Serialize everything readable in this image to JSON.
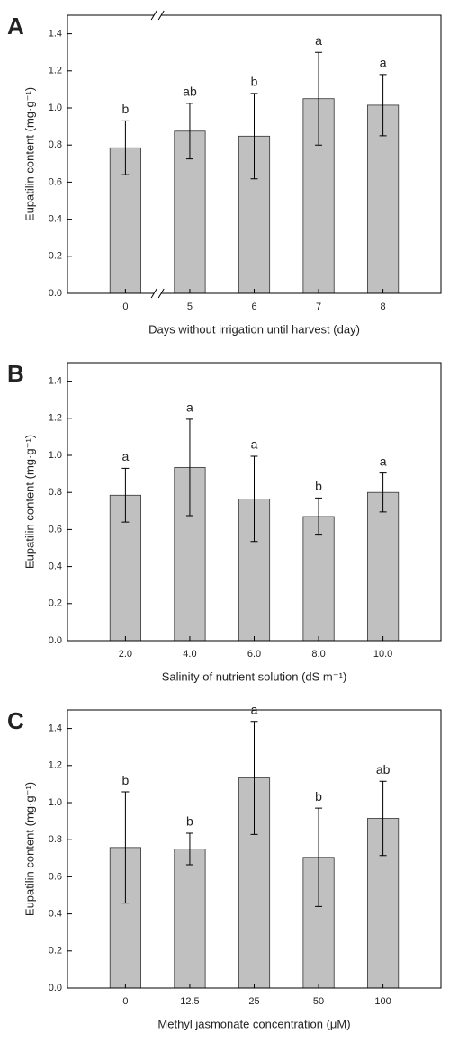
{
  "chart_data": [
    {
      "type": "bar",
      "panel": "A",
      "y_label": "Eupatilin content (mg·g⁻¹)",
      "x_label": "Days without irrigation until harvest (day)",
      "categories": [
        "0",
        "5",
        "6",
        "7",
        "8"
      ],
      "values": [
        0.785,
        0.875,
        0.848,
        1.05,
        1.015
      ],
      "errors": [
        0.145,
        0.15,
        0.23,
        0.25,
        0.165
      ],
      "annotations": [
        "b",
        "ab",
        "b",
        "a",
        "a"
      ],
      "color": "#c0c0c0",
      "axis_break": true,
      "ylim": [
        0,
        1.5
      ],
      "yticks": [
        {
          "value": 0,
          "label": "0.0"
        },
        {
          "value": 0.2,
          "label": "0.2"
        },
        {
          "value": 0.4,
          "label": "0.4"
        },
        {
          "value": 0.6,
          "label": "0.6"
        },
        {
          "value": 0.8,
          "label": "0.8"
        },
        {
          "value": 1,
          "label": "1.0"
        },
        {
          "value": 1.2,
          "label": "1.2"
        },
        {
          "value": 1.4,
          "label": "1.4"
        }
      ]
    },
    {
      "type": "bar",
      "panel": "B",
      "y_label": "Eupatilin content (mg·g⁻¹)",
      "x_label": "Salinity of nutrient solution (dS m⁻¹)",
      "categories": [
        "2.0",
        "4.0",
        "6.0",
        "8.0",
        "10.0"
      ],
      "values": [
        0.785,
        0.935,
        0.765,
        0.67,
        0.8
      ],
      "errors": [
        0.145,
        0.26,
        0.23,
        0.1,
        0.105
      ],
      "annotations": [
        "a",
        "a",
        "a",
        "b",
        "a"
      ],
      "color": "#c0c0c0",
      "axis_break": false,
      "ylim": [
        0,
        1.5
      ],
      "yticks": [
        {
          "value": 0,
          "label": "0.0"
        },
        {
          "value": 0.2,
          "label": "0.2"
        },
        {
          "value": 0.4,
          "label": "0.4"
        },
        {
          "value": 0.6,
          "label": "0.6"
        },
        {
          "value": 0.8,
          "label": "0.8"
        },
        {
          "value": 1,
          "label": "1.0"
        },
        {
          "value": 1.2,
          "label": "1.2"
        },
        {
          "value": 1.4,
          "label": "1.4"
        }
      ]
    },
    {
      "type": "bar",
      "panel": "C",
      "y_label": "Eupatilin content (mg·g⁻¹)",
      "x_label": "Methyl jasmonate concentration (μM)",
      "categories": [
        "0",
        "12.5",
        "25",
        "50",
        "100"
      ],
      "values": [
        0.758,
        0.75,
        1.133,
        0.705,
        0.915
      ],
      "errors": [
        0.3,
        0.085,
        0.305,
        0.265,
        0.2
      ],
      "annotations": [
        "b",
        "b",
        "a",
        "b",
        "ab"
      ],
      "color": "#c0c0c0",
      "axis_break": false,
      "ylim": [
        0,
        1.5
      ],
      "yticks": [
        {
          "value": 0,
          "label": "0.0"
        },
        {
          "value": 0.2,
          "label": "0.2"
        },
        {
          "value": 0.4,
          "label": "0.4"
        },
        {
          "value": 0.6,
          "label": "0.6"
        },
        {
          "value": 0.8,
          "label": "0.8"
        },
        {
          "value": 1,
          "label": "1.0"
        },
        {
          "value": 1.2,
          "label": "1.2"
        },
        {
          "value": 1.4,
          "label": "1.4"
        }
      ]
    }
  ]
}
